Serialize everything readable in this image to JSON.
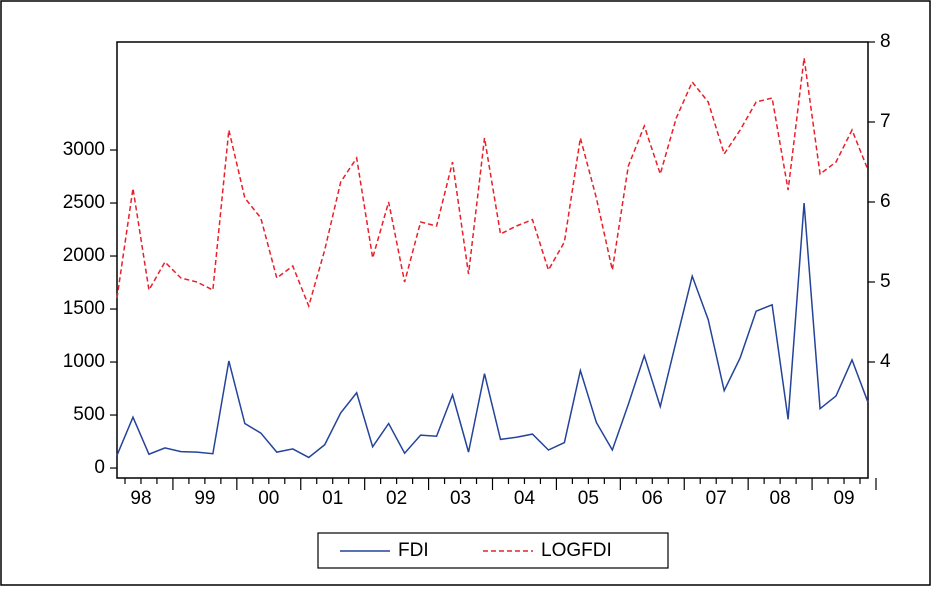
{
  "chart_data": {
    "type": "line",
    "categories": [
      null,
      "98",
      null,
      null,
      null,
      "99",
      null,
      null,
      null,
      "00",
      null,
      null,
      null,
      "01",
      null,
      null,
      null,
      "02",
      null,
      null,
      null,
      "03",
      null,
      null,
      null,
      "04",
      null,
      null,
      null,
      "05",
      null,
      null,
      null,
      "06",
      null,
      null,
      null,
      "07",
      null,
      null,
      null,
      "08",
      null,
      null,
      null,
      "09",
      null,
      null
    ],
    "series": [
      {
        "name": "FDI",
        "color": "#24449a",
        "style": "solid",
        "axis": "y",
        "values": [
          120,
          480,
          130,
          190,
          155,
          150,
          135,
          1010,
          420,
          330,
          150,
          180,
          100,
          220,
          520,
          710,
          200,
          420,
          140,
          310,
          300,
          690,
          150,
          890,
          270,
          290,
          320,
          170,
          240,
          920,
          430,
          170,
          600,
          1060,
          580,
          1200,
          1810,
          1400,
          730,
          1040,
          1480,
          1540,
          460,
          2500,
          560,
          680,
          1020,
          620
        ]
      },
      {
        "name": "LOGFDI",
        "color": "#e8202a",
        "style": "dashed",
        "axis": "y2",
        "values": [
          4.8,
          6.17,
          4.9,
          5.25,
          5.05,
          5.0,
          4.9,
          6.9,
          6.05,
          5.8,
          5.05,
          5.2,
          4.7,
          5.4,
          6.25,
          6.55,
          5.3,
          6.0,
          5.0,
          5.75,
          5.7,
          6.5,
          5.1,
          6.8,
          5.6,
          5.7,
          5.78,
          5.15,
          5.5,
          6.8,
          6.05,
          5.15,
          6.45,
          6.95,
          6.35,
          7.05,
          7.5,
          7.25,
          6.6,
          6.9,
          7.25,
          7.3,
          6.15,
          7.8,
          6.35,
          6.5,
          6.9,
          6.4
        ]
      }
    ],
    "ylim": [
      -94,
      4019
    ],
    "yticks": [
      0,
      500,
      1000,
      1500,
      2000,
      2500,
      3000
    ],
    "y2lim": [
      2.55,
      8
    ],
    "y2ticks": [
      4,
      5,
      6,
      7,
      8
    ],
    "legend": "bottom"
  }
}
